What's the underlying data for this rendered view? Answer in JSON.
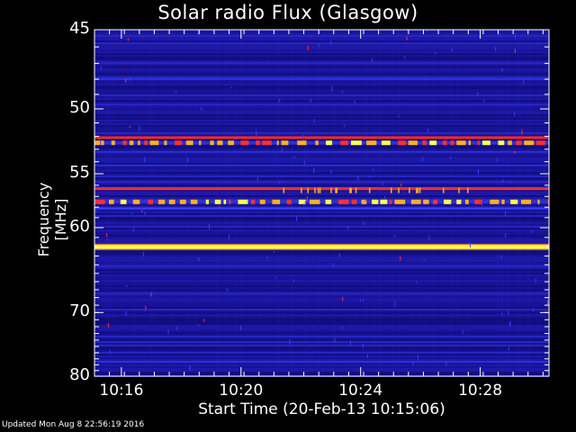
{
  "title": "Solar radio Flux (Glasgow)",
  "ylabel": "Frequency [MHz]",
  "xlabel": "Start Time (20-Feb-13 10:15:06)",
  "footer": "Updated Mon Aug  8 22:56:19 2016",
  "chart_data": {
    "type": "heatmap",
    "title": "Solar radio Flux (Glasgow)",
    "xlabel": "Start Time (20-Feb-13 10:15:06)",
    "ylabel": "Frequency [MHz]",
    "x_ticks": [
      "10:16",
      "10:20",
      "10:24",
      "10:28"
    ],
    "x_tick_minutes": [
      0.9,
      4.9,
      8.9,
      12.9
    ],
    "x_range_minutes": [
      0,
      15.2
    ],
    "y_ticks": [
      45,
      50,
      55,
      60,
      70,
      80
    ],
    "y_range": [
      45,
      80
    ],
    "y_scale": "reciprocal",
    "colormap": [
      "#1a0a8a",
      "#2030ff",
      "#ff2020",
      "#ffff40"
    ],
    "bands": [
      {
        "freq": 48.0,
        "level": 0.45
      },
      {
        "freq": 52.1,
        "level": 0.8
      },
      {
        "freq": 52.5,
        "level": 0.95,
        "pattern": "intermittent"
      },
      {
        "freq": 53.2,
        "level": 0.4
      },
      {
        "freq": 54.3,
        "level": 0.4
      },
      {
        "freq": 56.3,
        "level": 0.75
      },
      {
        "freq": 57.5,
        "level": 0.9,
        "pattern": "intermittent"
      },
      {
        "freq": 58.1,
        "level": 0.5
      },
      {
        "freq": 62.0,
        "level": 1.0
      },
      {
        "freq": 77.5,
        "level": 0.35
      }
    ]
  }
}
